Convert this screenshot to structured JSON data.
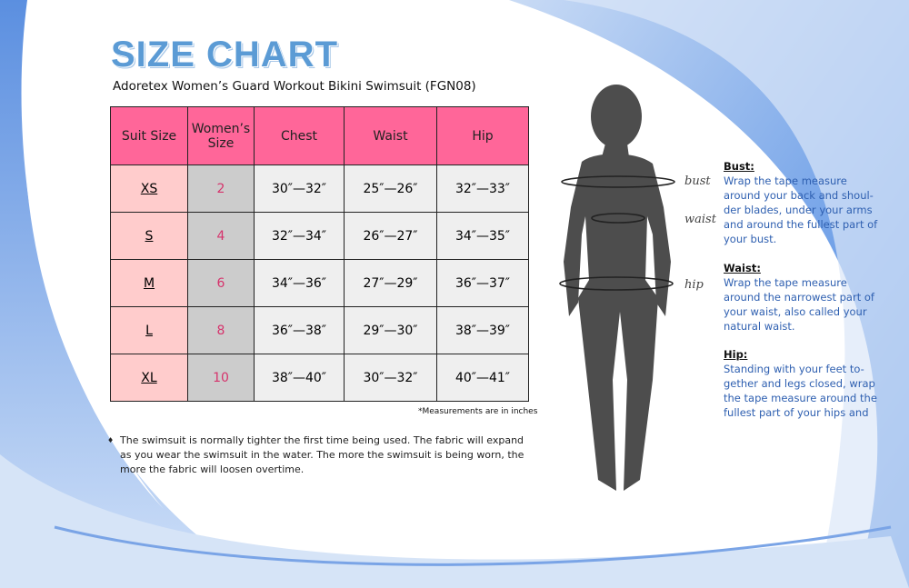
{
  "title": "SIZE CHART",
  "subtitle": "Adoretex Women’s Guard Workout Bikini Swimsuit (FGN08)",
  "table": {
    "headers": [
      "Suit Size",
      "Women’s Size",
      "Chest",
      "Waist",
      "Hip"
    ],
    "rows": [
      [
        "XS",
        "2",
        "30″—32″",
        "25″—26″",
        "32″—33″"
      ],
      [
        "S",
        "4",
        "32″—34″",
        "26″—27″",
        "34″—35″"
      ],
      [
        "M",
        "6",
        "34″—36″",
        "27″—29″",
        "36″—37″"
      ],
      [
        "L",
        "8",
        "36″—38″",
        "29″—30″",
        "38″—39″"
      ],
      [
        "XL",
        "10",
        "38″—40″",
        "30″—32″",
        "40″—41″"
      ]
    ]
  },
  "note": "*Measurements are in inches",
  "bullet": "The swimsuit is normally tighter the first time being used.  The fabric will expand as you wear the swimsuit in the water.  The more the swimsuit is being worn, the more the fabric will loosen overtime.",
  "figure_labels": {
    "bust": "bust",
    "waist": "waist",
    "hip": "hip"
  },
  "instructions": [
    {
      "heading": "Bust:",
      "text": "Wrap the tape measure around your back and shoul-der blades, under your arms and around the fullest part of your bust."
    },
    {
      "heading": "Waist:",
      "text": "Wrap the tape measure around the narrowest part of your waist, also called your natural waist."
    },
    {
      "heading": "Hip:",
      "text": "Standing with your feet to-gether and legs closed, wrap the tape measure around the fullest part of your hips and"
    }
  ],
  "colors": {
    "header": "#ff6699",
    "suit_col": "#ffcccc",
    "women_col": "#cccccc",
    "title": "#5b9bd5",
    "instructions": "#2e5fb0"
  }
}
